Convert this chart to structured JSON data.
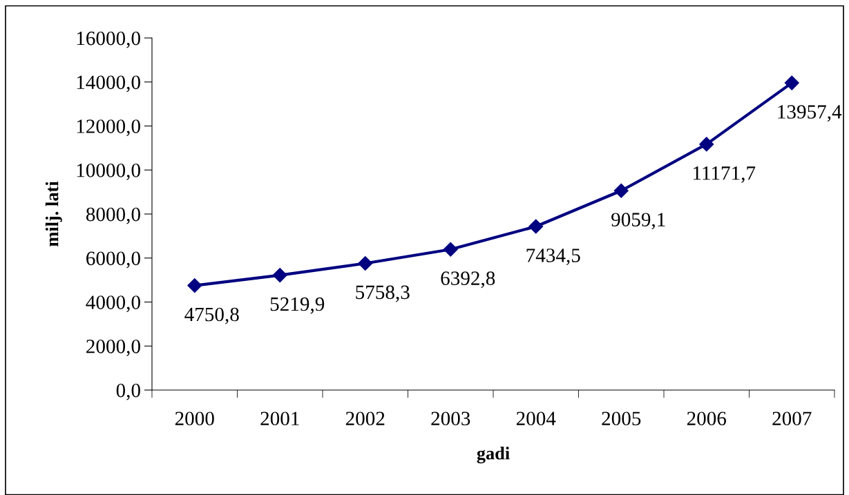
{
  "chart_data": {
    "type": "line",
    "xlabel": "gadi",
    "ylabel": "milj. lati",
    "categories": [
      "2000",
      "2001",
      "2002",
      "2003",
      "2004",
      "2005",
      "2006",
      "2007"
    ],
    "series": [
      {
        "color": "#000080",
        "values": [
          4750.8,
          5219.9,
          5758.3,
          6392.8,
          7434.5,
          9059.1,
          11171.7,
          13957.4
        ],
        "value_labels": [
          "4750,8",
          "5219,9",
          "5758,3",
          "6392,8",
          "7434,5",
          "9059,1",
          "11171,7",
          "13957,4"
        ]
      }
    ],
    "ylim": [
      0,
      16000
    ],
    "yticks": [
      {
        "value": 0,
        "label": "0,0"
      },
      {
        "value": 2000,
        "label": "2000,0"
      },
      {
        "value": 4000,
        "label": "4000,0"
      },
      {
        "value": 6000,
        "label": "6000,0"
      },
      {
        "value": 8000,
        "label": "8000,0"
      },
      {
        "value": 10000,
        "label": "10000,0"
      },
      {
        "value": 12000,
        "label": "12000,0"
      },
      {
        "value": 14000,
        "label": "14000,0"
      },
      {
        "value": 16000,
        "label": "16000,0"
      }
    ],
    "grid": false,
    "legend": false,
    "marker": "diamond",
    "line_style": "solid"
  }
}
